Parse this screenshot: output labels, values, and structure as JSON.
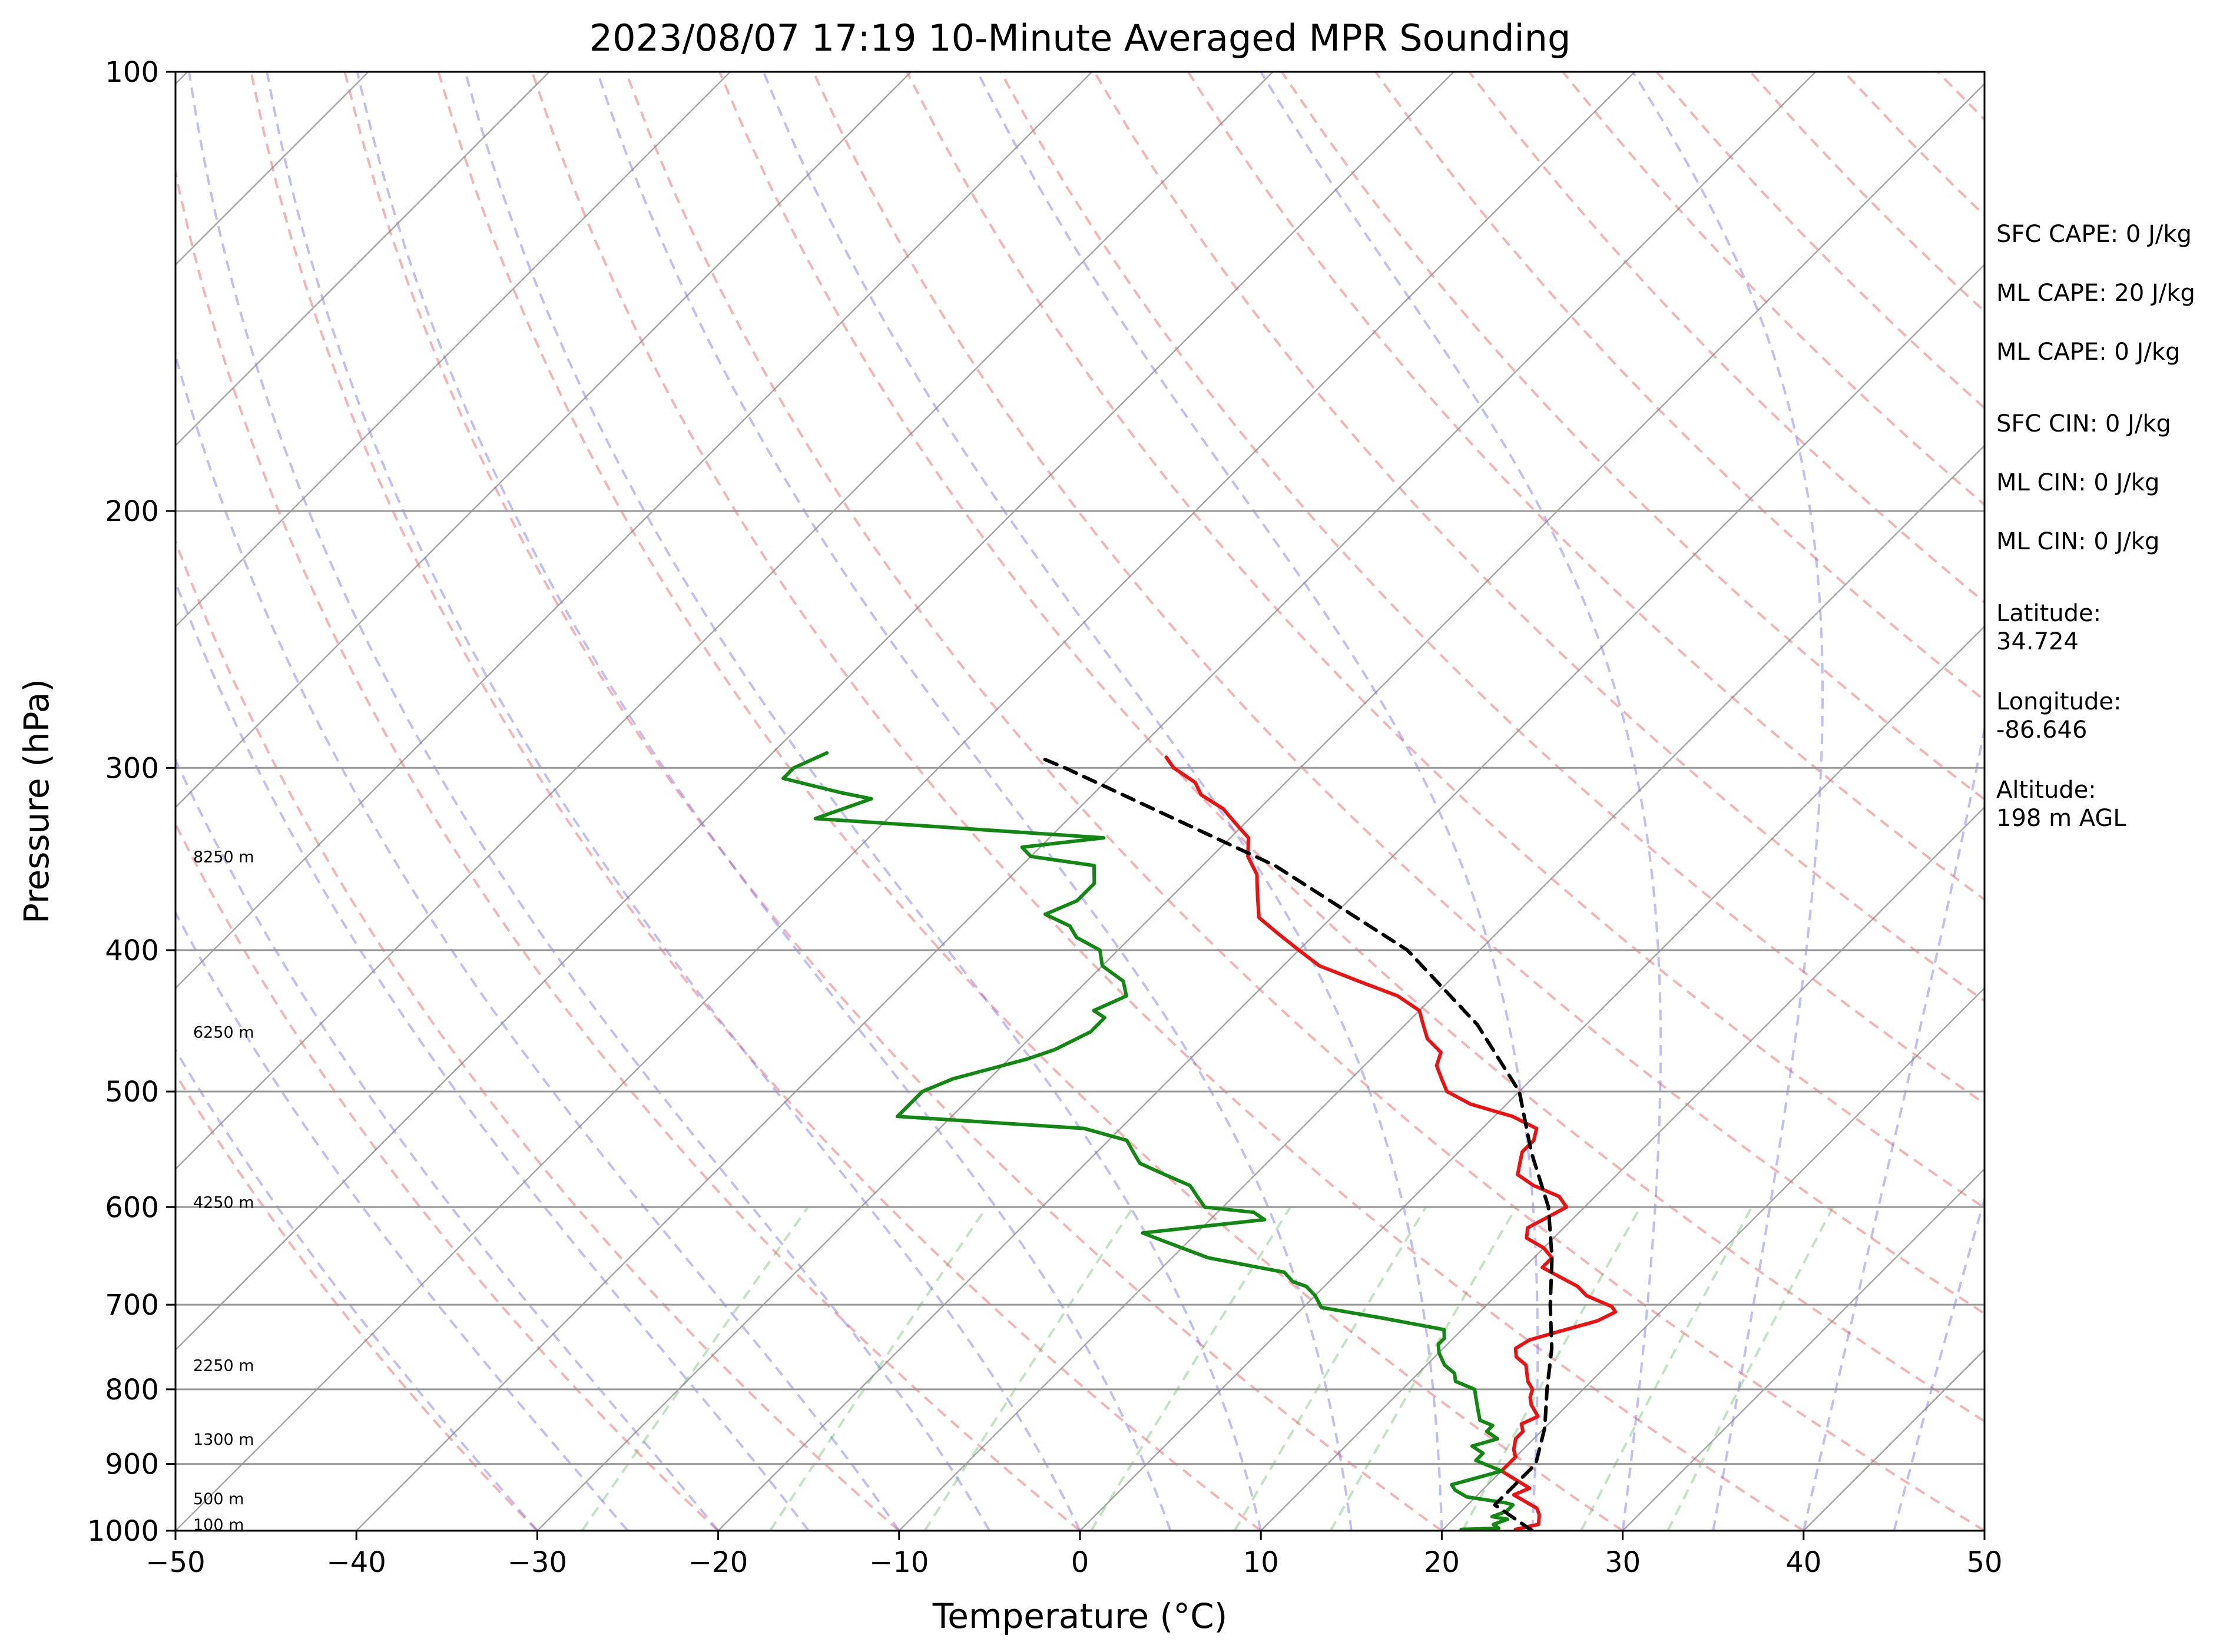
{
  "chart_data": {
    "type": "line",
    "title": "2023/08/07 17:19 10-Minute Averaged MPR Sounding",
    "xlabel": "Temperature (°C)",
    "ylabel": "Pressure (hPa)",
    "xlim": [
      -50,
      50
    ],
    "ylim": [
      1000,
      100
    ],
    "y_scale": "log",
    "skew": "skew-T log-P",
    "grid": true,
    "x_ticks": [
      "−50",
      "−40",
      "−30",
      "−20",
      "−10",
      "0",
      "10",
      "20",
      "30",
      "40",
      "50"
    ],
    "y_ticks": [
      "100",
      "200",
      "300",
      "400",
      "500",
      "600",
      "700",
      "800",
      "900",
      "1000"
    ],
    "height_labels": [
      {
        "text": "100 m",
        "pressure": 990
      },
      {
        "text": "500 m",
        "pressure": 950
      },
      {
        "text": "1300 m",
        "pressure": 865
      },
      {
        "text": "2250 m",
        "pressure": 770
      },
      {
        "text": "4250 m",
        "pressure": 595
      },
      {
        "text": "6250 m",
        "pressure": 455
      },
      {
        "text": "8250 m",
        "pressure": 345
      }
    ],
    "series": [
      {
        "key": "temperature",
        "color": "#ee1111",
        "points": [
          [
            24,
            998
          ],
          [
            25,
            990
          ],
          [
            24.5,
            975
          ],
          [
            24,
            965
          ],
          [
            23,
            955
          ],
          [
            22,
            945
          ],
          [
            22.5,
            935
          ],
          [
            21,
            920
          ],
          [
            20,
            910
          ],
          [
            20,
            890
          ],
          [
            19.5,
            880
          ],
          [
            19,
            865
          ],
          [
            19,
            855
          ],
          [
            18.5,
            845
          ],
          [
            19,
            835
          ],
          [
            18,
            820
          ],
          [
            17.5,
            810
          ],
          [
            17.2,
            800
          ],
          [
            16.5,
            790
          ],
          [
            16,
            780
          ],
          [
            15.5,
            770
          ],
          [
            14.5,
            760
          ],
          [
            14,
            750
          ],
          [
            14.3,
            740
          ],
          [
            15.5,
            730
          ],
          [
            17,
            718
          ],
          [
            17.5,
            708
          ],
          [
            17,
            702
          ],
          [
            15,
            690
          ],
          [
            14,
            680
          ],
          [
            12.5,
            670
          ],
          [
            11,
            660
          ],
          [
            11,
            650
          ],
          [
            10,
            640
          ],
          [
            8.5,
            630
          ],
          [
            8,
            620
          ],
          [
            8.5,
            610
          ],
          [
            9,
            600
          ],
          [
            8,
            590
          ],
          [
            6,
            580
          ],
          [
            4.5,
            570
          ],
          [
            4,
            560
          ],
          [
            3.5,
            550
          ],
          [
            3.5,
            540
          ],
          [
            3,
            530
          ],
          [
            1,
            520
          ],
          [
            -2,
            510
          ],
          [
            -4,
            500
          ],
          [
            -5,
            490
          ],
          [
            -6,
            480
          ],
          [
            -6.5,
            470
          ],
          [
            -8,
            460
          ],
          [
            -9,
            450
          ],
          [
            -10,
            440
          ],
          [
            -12,
            430
          ],
          [
            -15,
            420
          ],
          [
            -18,
            410
          ],
          [
            -20,
            400
          ],
          [
            -22,
            390
          ],
          [
            -24,
            380
          ],
          [
            -25,
            370
          ],
          [
            -26,
            360
          ],
          [
            -26.5,
            355
          ],
          [
            -28,
            345
          ],
          [
            -29,
            335
          ],
          [
            -30,
            330
          ],
          [
            -31,
            325
          ],
          [
            -32,
            320
          ],
          [
            -34,
            313
          ],
          [
            -35,
            307
          ],
          [
            -37,
            300
          ],
          [
            -38,
            295
          ]
        ]
      },
      {
        "key": "dewpoint",
        "color": "#118811",
        "points": [
          [
            21,
            998
          ],
          [
            23,
            996
          ],
          [
            22.5,
            990
          ],
          [
            23,
            982
          ],
          [
            22,
            978
          ],
          [
            22.5,
            970
          ],
          [
            22.5,
            960
          ],
          [
            22,
            957
          ],
          [
            19.5,
            948
          ],
          [
            18.5,
            938
          ],
          [
            18,
            930
          ],
          [
            19,
            920
          ],
          [
            20,
            910
          ],
          [
            18,
            895
          ],
          [
            18,
            885
          ],
          [
            17,
            875
          ],
          [
            18,
            865
          ],
          [
            17,
            855
          ],
          [
            17,
            847
          ],
          [
            16,
            840
          ],
          [
            15.5,
            830
          ],
          [
            15,
            820
          ],
          [
            14.5,
            810
          ],
          [
            14,
            800
          ],
          [
            12.5,
            790
          ],
          [
            12,
            780
          ],
          [
            11,
            770
          ],
          [
            10,
            755
          ],
          [
            9.5,
            745
          ],
          [
            9.5,
            738
          ],
          [
            9,
            728
          ],
          [
            5,
            715
          ],
          [
            1,
            703
          ],
          [
            0,
            690
          ],
          [
            -1,
            680
          ],
          [
            -2,
            675
          ],
          [
            -3,
            665
          ],
          [
            -8,
            650
          ],
          [
            -10,
            640
          ],
          [
            -12,
            630
          ],
          [
            -13,
            625
          ],
          [
            -7,
            612
          ],
          [
            -8,
            605
          ],
          [
            -11,
            600
          ],
          [
            -12,
            590
          ],
          [
            -13,
            580
          ],
          [
            -15,
            570
          ],
          [
            -17,
            560
          ],
          [
            -18,
            550
          ],
          [
            -19,
            540
          ],
          [
            -22,
            530
          ],
          [
            -33,
            520
          ],
          [
            -33,
            510
          ],
          [
            -33,
            500
          ],
          [
            -32,
            490
          ],
          [
            -29,
            475
          ],
          [
            -28,
            468
          ],
          [
            -27,
            455
          ],
          [
            -27,
            445
          ],
          [
            -28,
            440
          ],
          [
            -27,
            430
          ],
          [
            -28,
            420
          ],
          [
            -29,
            415
          ],
          [
            -30,
            410
          ],
          [
            -31,
            400
          ],
          [
            -33,
            392
          ],
          [
            -34,
            385
          ],
          [
            -36,
            378
          ],
          [
            -35,
            370
          ],
          [
            -35,
            360
          ],
          [
            -36,
            350
          ],
          [
            -40,
            345
          ],
          [
            -41,
            340
          ],
          [
            -37,
            335
          ],
          [
            -54,
            325
          ],
          [
            -52,
            315
          ],
          [
            -54,
            312
          ],
          [
            -58,
            305
          ],
          [
            -58,
            300
          ],
          [
            -57,
            293
          ]
        ]
      },
      {
        "key": "parcel",
        "color": "#000000",
        "dashed": true,
        "points": [
          [
            25,
            1000
          ],
          [
            21.5,
            960
          ],
          [
            21.5,
            900
          ],
          [
            20,
            850
          ],
          [
            18,
            800
          ],
          [
            16,
            750
          ],
          [
            13.5,
            700
          ],
          [
            11,
            650
          ],
          [
            8,
            600
          ],
          [
            4,
            550
          ],
          [
            0,
            500
          ],
          [
            -6,
            450
          ],
          [
            -14,
            400
          ],
          [
            -26,
            350
          ],
          [
            -43,
            300
          ],
          [
            -45,
            295
          ]
        ]
      }
    ]
  },
  "info": {
    "sfc_cape": "SFC CAPE: 0 J/kg",
    "ml_cape_1": "ML CAPE: 20 J/kg",
    "ml_cape_2": "ML CAPE: 0 J/kg",
    "sfc_cin": "SFC CIN: 0 J/kg",
    "ml_cin_1": "ML CIN: 0 J/kg",
    "ml_cin_2": "ML CIN: 0 J/kg",
    "latitude": "Latitude:\n34.724",
    "longitude": "Longitude:\n-86.646",
    "altitude": "Altitude:\n198 m AGL"
  },
  "colors": {
    "dry_adiabat": "#f08080",
    "moist_adiabat": "#7070ee",
    "mixing_ratio": "#4caf50",
    "isotherm": "#888888",
    "isobar": "#999999"
  }
}
